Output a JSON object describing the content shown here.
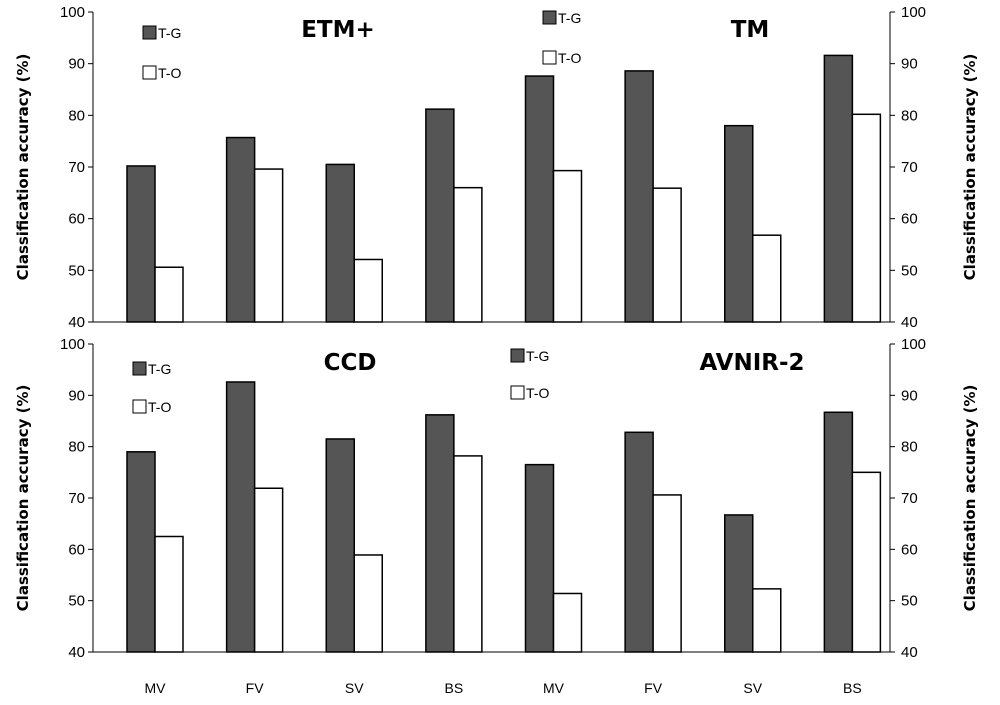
{
  "chart_data": {
    "type": "bar",
    "axis_label": "Classification accuracy (%)",
    "ylim": [
      40,
      100
    ],
    "y_ticks": [
      "40",
      "50",
      "60",
      "70",
      "80",
      "90",
      "100"
    ],
    "categories": [
      "MV",
      "FV",
      "SV",
      "BS",
      "MV",
      "FV",
      "SV",
      "BS"
    ],
    "legend": [
      "T-G",
      "T-O"
    ],
    "colors": {
      "T-G": "#555555",
      "T-O": "#ffffff"
    },
    "panels": [
      {
        "position": "top",
        "sensors": [
          {
            "title": "ETM+",
            "series": [
              {
                "name": "T-G",
                "values": [
                  70.2,
                  75.7,
                  70.5,
                  81.2
                ]
              },
              {
                "name": "T-O",
                "values": [
                  50.6,
                  69.6,
                  52.1,
                  66.0
                ]
              }
            ]
          },
          {
            "title": "TM",
            "series": [
              {
                "name": "T-G",
                "values": [
                  87.6,
                  88.6,
                  78.0,
                  91.6
                ]
              },
              {
                "name": "T-O",
                "values": [
                  69.3,
                  65.9,
                  56.8,
                  80.2
                ]
              }
            ]
          }
        ]
      },
      {
        "position": "bottom",
        "sensors": [
          {
            "title": "CCD",
            "series": [
              {
                "name": "T-G",
                "values": [
                  79.0,
                  92.6,
                  81.5,
                  86.2
                ]
              },
              {
                "name": "T-O",
                "values": [
                  62.5,
                  71.9,
                  58.9,
                  78.2
                ]
              }
            ]
          },
          {
            "title": "AVNIR-2",
            "series": [
              {
                "name": "T-G",
                "values": [
                  76.5,
                  82.8,
                  66.7,
                  86.7
                ]
              },
              {
                "name": "T-O",
                "values": [
                  51.4,
                  70.6,
                  52.3,
                  75.0
                ]
              }
            ]
          }
        ]
      }
    ]
  }
}
